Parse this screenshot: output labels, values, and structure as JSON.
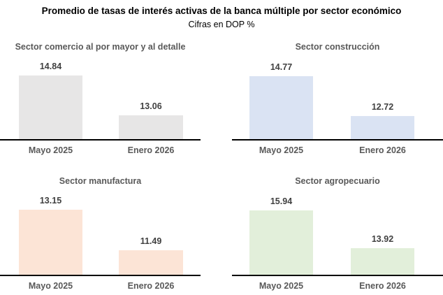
{
  "header": {
    "title": "Promedio de tasas de interés activas de la banca múltiple por sector económico",
    "subtitle": "Cifras en DOP %"
  },
  "colors": {
    "chart_title_text": "#595959",
    "category_label_text": "#595959",
    "value_label_text": "#404040",
    "axis_line": "#000000",
    "background": "#ffffff"
  },
  "chart_data": [
    {
      "type": "bar",
      "title": "Sector comercio al por mayor y al detalle",
      "categories": [
        "Mayo 2025",
        "Enero 2026"
      ],
      "values": [
        14.84,
        13.06
      ],
      "bar_color": "#e7e6e6",
      "ylim": [
        12,
        15
      ],
      "grid": false,
      "legend": false,
      "data_labels": true,
      "xlabel": "",
      "ylabel": ""
    },
    {
      "type": "bar",
      "title": "Sector construcción",
      "categories": [
        "Mayo 2025",
        "Enero 2026"
      ],
      "values": [
        14.77,
        12.72
      ],
      "bar_color": "#dae3f3",
      "ylim": [
        11.5,
        15
      ],
      "grid": false,
      "legend": false,
      "data_labels": true,
      "xlabel": "",
      "ylabel": ""
    },
    {
      "type": "bar",
      "title": "Sector manufactura",
      "categories": [
        "Mayo 2025",
        "Enero 2026"
      ],
      "values": [
        13.15,
        11.49
      ],
      "bar_color": "#fce4d6",
      "ylim": [
        10.5,
        13.25
      ],
      "grid": false,
      "legend": false,
      "data_labels": true,
      "xlabel": "",
      "ylabel": ""
    },
    {
      "type": "bar",
      "title": "Sector agropecuario",
      "categories": [
        "Mayo 2025",
        "Enero 2026"
      ],
      "values": [
        15.94,
        13.92
      ],
      "bar_color": "#e2efda",
      "ylim": [
        12.5,
        16.1
      ],
      "grid": false,
      "legend": false,
      "data_labels": true,
      "xlabel": "",
      "ylabel": ""
    }
  ]
}
